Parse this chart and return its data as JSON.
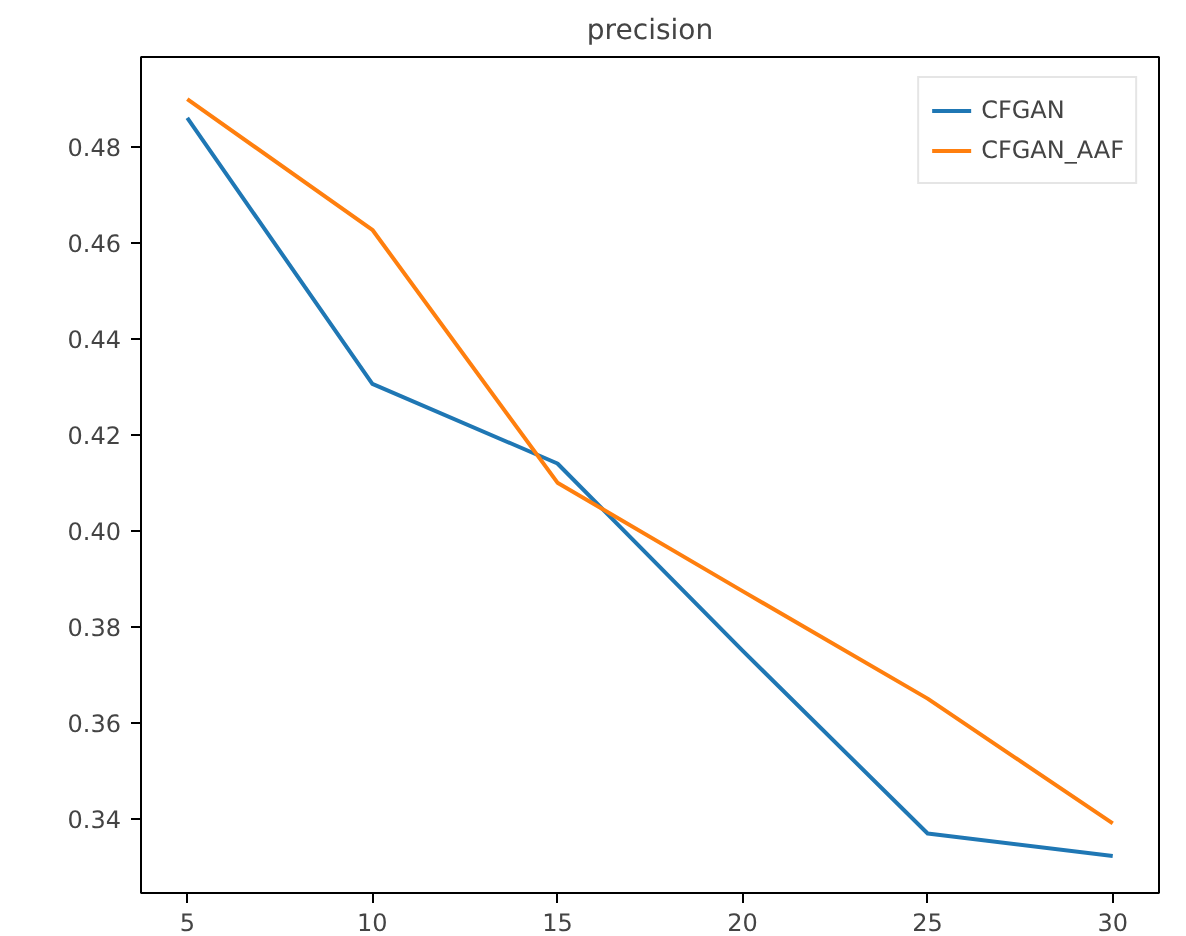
{
  "chart_data": {
    "type": "line",
    "title": "precision",
    "x": [
      5,
      10,
      15,
      20,
      25,
      30
    ],
    "series": [
      {
        "name": "CFGAN",
        "color": "#1f77b4",
        "values": [
          0.486,
          0.4306,
          0.414,
          0.375,
          0.3369,
          0.3322
        ]
      },
      {
        "name": "CFGAN_AAF",
        "color": "#ff7f0e",
        "values": [
          0.4899,
          0.4627,
          0.41,
          0.3874,
          0.365,
          0.339
        ]
      }
    ],
    "xlim": [
      3.75,
      31.25
    ],
    "ylim": [
      0.3245,
      0.4987
    ],
    "xticks": [
      5,
      10,
      15,
      20,
      25,
      30
    ],
    "yticks": [
      {
        "value": 0.34,
        "label": "0.34"
      },
      {
        "value": 0.36,
        "label": "0.36"
      },
      {
        "value": 0.38,
        "label": "0.38"
      },
      {
        "value": 0.4,
        "label": "0.40"
      },
      {
        "value": 0.42,
        "label": "0.42"
      },
      {
        "value": 0.44,
        "label": "0.44"
      },
      {
        "value": 0.46,
        "label": "0.46"
      },
      {
        "value": 0.48,
        "label": "0.48"
      }
    ],
    "grid": false,
    "legend": "top right",
    "line_style": "solid"
  }
}
